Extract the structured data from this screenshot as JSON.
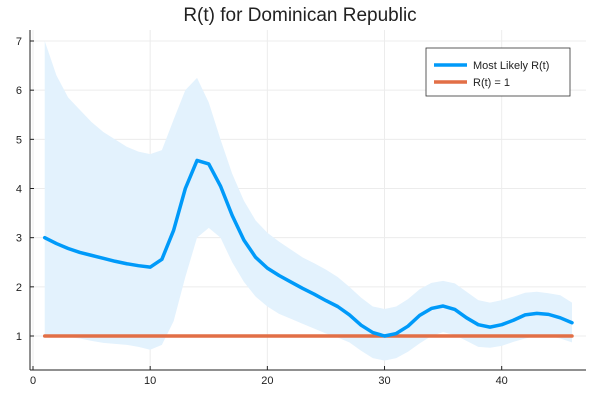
{
  "chart_data": {
    "type": "line",
    "title": "R(t) for Dominican Republic",
    "xlabel": "",
    "ylabel": "",
    "xlim": [
      0,
      46
    ],
    "ylim": [
      1,
      7
    ],
    "xticks": [
      0,
      10,
      20,
      30,
      40
    ],
    "yticks": [
      1,
      2,
      3,
      4,
      5,
      6,
      7
    ],
    "grid": true,
    "legend_position": "top-right",
    "x": [
      1,
      2,
      3,
      4,
      5,
      6,
      7,
      8,
      9,
      10,
      11,
      12,
      13,
      14,
      15,
      16,
      17,
      18,
      19,
      20,
      21,
      22,
      23,
      24,
      25,
      26,
      27,
      28,
      29,
      30,
      31,
      32,
      33,
      34,
      35,
      36,
      37,
      38,
      39,
      40,
      41,
      42,
      43,
      44,
      45,
      46
    ],
    "series": [
      {
        "name": "Most Likely R(t)",
        "color": "#009af9",
        "values": [
          3.0,
          2.88,
          2.78,
          2.7,
          2.64,
          2.58,
          2.52,
          2.47,
          2.43,
          2.4,
          2.56,
          3.15,
          4.0,
          4.57,
          4.5,
          4.05,
          3.45,
          2.95,
          2.6,
          2.38,
          2.23,
          2.1,
          1.97,
          1.85,
          1.72,
          1.6,
          1.43,
          1.22,
          1.07,
          1.0,
          1.05,
          1.2,
          1.42,
          1.56,
          1.61,
          1.54,
          1.37,
          1.23,
          1.18,
          1.23,
          1.32,
          1.43,
          1.46,
          1.44,
          1.37,
          1.27
        ],
        "lower": [
          1.0,
          1.0,
          0.98,
          0.95,
          0.9,
          0.86,
          0.84,
          0.82,
          0.78,
          0.72,
          0.82,
          1.3,
          2.2,
          3.0,
          3.2,
          3.0,
          2.5,
          2.1,
          1.8,
          1.6,
          1.45,
          1.35,
          1.25,
          1.15,
          1.05,
          0.97,
          0.87,
          0.7,
          0.55,
          0.5,
          0.55,
          0.68,
          0.85,
          1.0,
          1.08,
          1.02,
          0.9,
          0.78,
          0.76,
          0.8,
          0.88,
          0.95,
          1.0,
          1.0,
          0.95,
          0.87
        ],
        "upper": [
          7.0,
          6.3,
          5.85,
          5.6,
          5.35,
          5.15,
          5.0,
          4.85,
          4.75,
          4.7,
          4.78,
          5.4,
          6.0,
          6.25,
          5.75,
          5.0,
          4.3,
          3.75,
          3.35,
          3.1,
          2.92,
          2.76,
          2.6,
          2.48,
          2.35,
          2.2,
          2.0,
          1.78,
          1.6,
          1.55,
          1.6,
          1.75,
          1.95,
          2.08,
          2.12,
          2.07,
          1.9,
          1.73,
          1.68,
          1.73,
          1.8,
          1.88,
          1.9,
          1.87,
          1.83,
          1.68
        ],
        "band_color": "#e3f2fd"
      },
      {
        "name": "R(t) = 1",
        "color": "#e26f46",
        "values": [
          1,
          1,
          1,
          1,
          1,
          1,
          1,
          1,
          1,
          1,
          1,
          1,
          1,
          1,
          1,
          1,
          1,
          1,
          1,
          1,
          1,
          1,
          1,
          1,
          1,
          1,
          1,
          1,
          1,
          1,
          1,
          1,
          1,
          1,
          1,
          1,
          1,
          1,
          1,
          1,
          1,
          1,
          1,
          1,
          1,
          1
        ]
      }
    ]
  }
}
